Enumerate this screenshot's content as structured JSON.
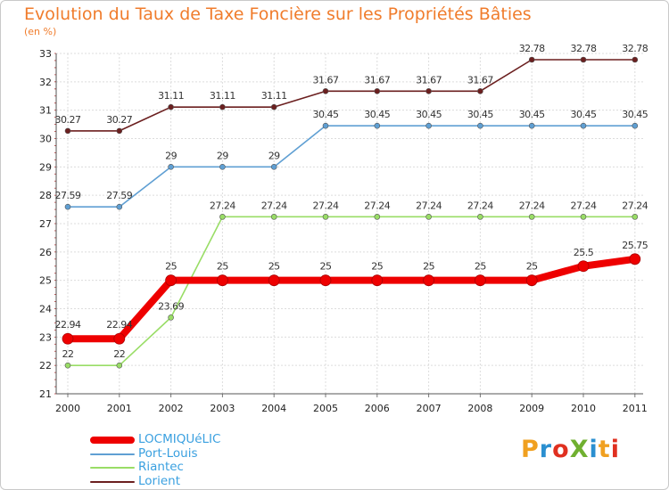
{
  "header": {
    "title": "Evolution du Taux de Taxe Foncière sur les Propriétés Bâties",
    "unit": "(en %)"
  },
  "chart_data": {
    "type": "line",
    "title": "Evolution du Taux de Taxe Foncière sur les Propriétés Bâties",
    "ylabel": "(en %)",
    "xlabel": "",
    "x": [
      "2000",
      "2001",
      "2002",
      "2003",
      "2004",
      "2005",
      "2006",
      "2007",
      "2008",
      "2009",
      "2010",
      "2011"
    ],
    "ylim": [
      21,
      33
    ],
    "yticks": [
      21,
      22,
      23,
      24,
      25,
      26,
      27,
      28,
      29,
      30,
      31,
      32,
      33
    ],
    "grid": true,
    "legend_position": "bottom-left",
    "series": [
      {
        "name": "Lorient",
        "color": "#6b1f1f",
        "values": [
          30.27,
          30.27,
          31.11,
          31.11,
          31.11,
          31.67,
          31.67,
          31.67,
          31.67,
          32.78,
          32.78,
          32.78
        ],
        "labels": [
          "30.27",
          "30.27",
          "31.11",
          "31.11",
          "31.11",
          "31.67",
          "31.67",
          "31.67",
          "31.67",
          "32.78",
          "32.78",
          "32.78"
        ]
      },
      {
        "name": "Port-Louis",
        "color": "#5f9fd3",
        "values": [
          27.59,
          27.59,
          29,
          29,
          29,
          30.45,
          30.45,
          30.45,
          30.45,
          30.45,
          30.45,
          30.45
        ],
        "labels": [
          "27.59",
          "27.59",
          "29",
          "29",
          "29",
          "30.45",
          "30.45",
          "30.45",
          "30.45",
          "30.45",
          "30.45",
          "30.45"
        ]
      },
      {
        "name": "Riantec",
        "color": "#99dd66",
        "values": [
          22,
          22,
          23.69,
          27.24,
          27.24,
          27.24,
          27.24,
          27.24,
          27.24,
          27.24,
          27.24,
          27.24
        ],
        "labels": [
          "22",
          "22",
          "23.69",
          "27.24",
          "27.24",
          "27.24",
          "27.24",
          "27.24",
          "27.24",
          "27.24",
          "27.24",
          "27.24"
        ]
      },
      {
        "name": "LOCMIQUéLIC",
        "color": "#ee0000",
        "values": [
          22.94,
          22.94,
          25,
          25,
          25,
          25,
          25,
          25,
          25,
          25,
          25.5,
          25.75
        ],
        "labels": [
          "22.94",
          "22.94",
          "25",
          "25",
          "25",
          "25",
          "25",
          "25",
          "25",
          "25",
          "25.5",
          "25.75"
        ]
      }
    ]
  },
  "legend": [
    {
      "name": "LOCMIQUéLIC",
      "color": "#ee0000",
      "text_color": "#3aa0e0"
    },
    {
      "name": "Port-Louis",
      "color": "#5f9fd3",
      "text_color": "#3aa0e0"
    },
    {
      "name": "Riantec",
      "color": "#99dd66",
      "text_color": "#3aa0e0"
    },
    {
      "name": "Lorient",
      "color": "#6b1f1f",
      "text_color": "#3aa0e0"
    }
  ],
  "brand": {
    "text": "ProXiti",
    "colors": [
      "#f0a020",
      "#2a8fd0",
      "#e03020",
      "#70b030",
      "#2a8fd0",
      "#f0a020",
      "#e03020"
    ]
  }
}
